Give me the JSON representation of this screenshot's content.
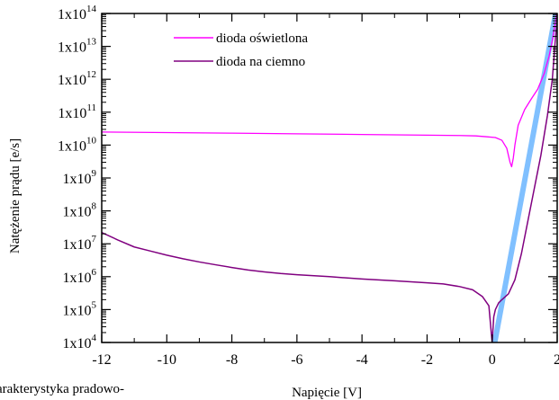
{
  "chart_data": {
    "type": "line",
    "xlabel": "Napięcie [V]",
    "ylabel": "Natężenie prądu  [e/s]",
    "xlim": [
      -12,
      2
    ],
    "ylim_log10": [
      4,
      14
    ],
    "y_scale": "log",
    "x_ticks": [
      "-12",
      "-10",
      "-8",
      "-6",
      "-4",
      "-2",
      "0",
      "2"
    ],
    "y_tick_base": "1x10",
    "y_tick_exponents": [
      "4",
      "5",
      "6",
      "7",
      "8",
      "9",
      "10",
      "11",
      "12",
      "13",
      "14"
    ],
    "grid": false,
    "legend_position": "top-center",
    "series": [
      {
        "name": "dioda oświetlona",
        "color": "#ff00ff",
        "x": [
          -12,
          -10,
          -8,
          -6,
          -4,
          -2,
          -1,
          -0.5,
          -0.2,
          0.1,
          0.3,
          0.45,
          0.55,
          0.6,
          0.65,
          0.7,
          0.8,
          1.0,
          1.2,
          1.4,
          1.6,
          1.75,
          1.85,
          1.95,
          2.0
        ],
        "y": [
          25000000000.0,
          24000000000.0,
          23000000000.0,
          22000000000.0,
          21000000000.0,
          20000000000.0,
          19500000000.0,
          19000000000.0,
          18000000000.0,
          17000000000.0,
          14000000000.0,
          8000000000.0,
          3000000000.0,
          2200000000.0,
          4000000000.0,
          10000000000.0,
          40000000000.0,
          120000000000.0,
          250000000000.0,
          500000000000.0,
          1500000000000.0,
          5000000000000.0,
          15000000000000.0,
          60000000000000.0,
          120000000000000.0
        ]
      },
      {
        "name": "dioda na ciemno",
        "color": "#800080",
        "x": [
          -12,
          -11.5,
          -11,
          -10.5,
          -10,
          -9.5,
          -9,
          -8.5,
          -8,
          -7.5,
          -7,
          -6.5,
          -6,
          -5,
          -4,
          -3,
          -2,
          -1.5,
          -1,
          -0.6,
          -0.3,
          -0.1,
          0,
          0.05,
          0.1,
          0.2,
          0.3,
          0.5,
          0.7,
          0.9,
          1.1,
          1.3,
          1.5,
          1.7,
          1.85,
          1.95,
          2.0
        ],
        "y": [
          22000000.0,
          13000000.0,
          8000000.0,
          6000000.0,
          4500000.0,
          3500000.0,
          2800000.0,
          2300000.0,
          1900000.0,
          1600000.0,
          1400000.0,
          1250000.0,
          1150000.0,
          1000000.0,
          850000.0,
          750000.0,
          650000.0,
          600000.0,
          500000.0,
          400000.0,
          250000.0,
          130000.0,
          10000.0,
          60000.0,
          100000.0,
          160000.0,
          200000.0,
          300000.0,
          800000.0,
          5000000.0,
          50000000.0,
          500000000.0,
          5000000000.0,
          80000000000.0,
          1000000000000.0,
          20000000000000.0,
          60000000000000.0
        ]
      },
      {
        "name": "",
        "color": "#80c0ff",
        "x": [
          0.08,
          1.95
        ],
        "y": [
          10000.0,
          100000000000000.0
        ]
      }
    ]
  },
  "caption": {
    "text": "arakterystyka pradowo-"
  }
}
